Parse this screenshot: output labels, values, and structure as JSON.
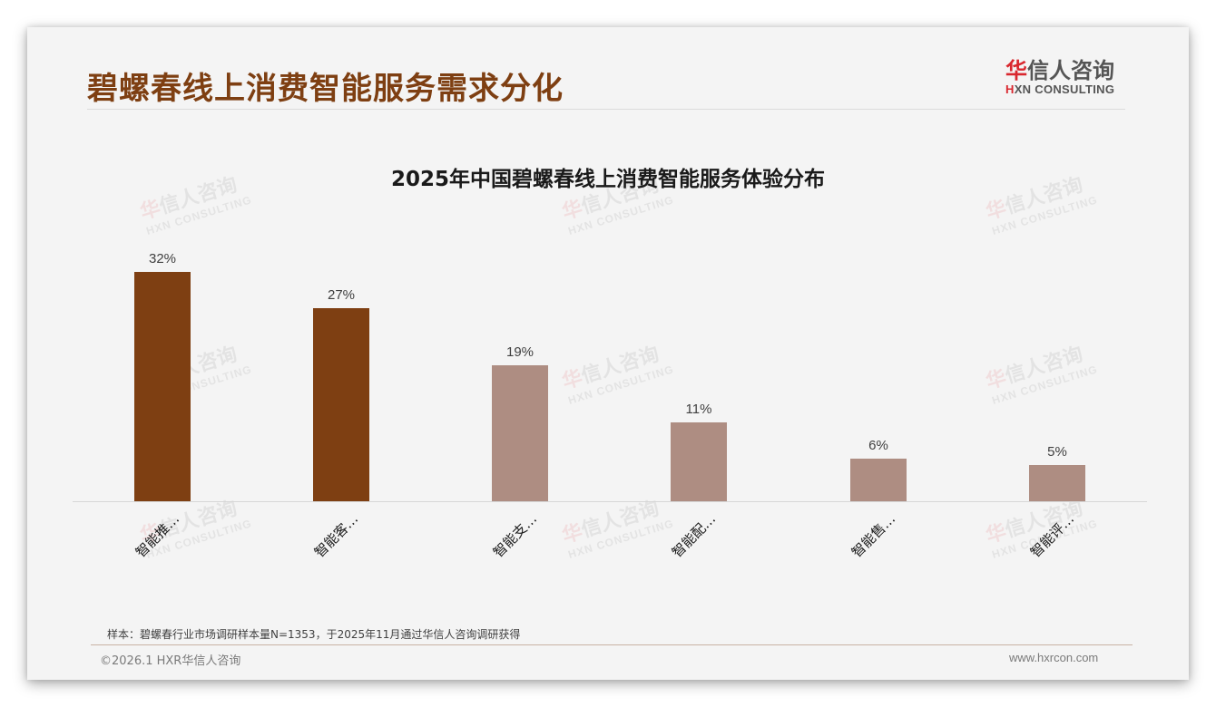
{
  "header": {
    "title": "碧螺春线上消费智能服务需求分化",
    "logo": {
      "cn_first": "华",
      "cn_rest": "信人咨询",
      "en_first": "H",
      "en_rest": "XN CONSULTING"
    }
  },
  "watermark": {
    "cn_first": "华",
    "cn_rest": "信人咨询",
    "en": "HXN CONSULTING"
  },
  "chart_data": {
    "type": "bar",
    "title": "2025年中国碧螺春线上消费智能服务体验分布",
    "categories": [
      "智能推…",
      "智能客…",
      "智能支…",
      "智能配…",
      "智能售…",
      "智能评…"
    ],
    "values": [
      32,
      27,
      19,
      11,
      6,
      5
    ],
    "value_labels": [
      "32%",
      "27%",
      "19%",
      "11%",
      "6%",
      "5%"
    ],
    "unit": "%",
    "xlabel": "",
    "ylabel": "",
    "ylim": [
      0,
      32
    ],
    "grid": false,
    "legend": null,
    "colors": [
      "#7e3f12",
      "#7e3f12",
      "#ae8d82",
      "#ae8d82",
      "#ae8d82",
      "#ae8d82"
    ]
  },
  "footer": {
    "sample_note": "样本：碧螺春行业市场调研样本量N=1353，于2025年11月通过华信人咨询调研获得",
    "copyright": "©2026.1 HXR华信人咨询",
    "website": "www.hxrcon.com"
  }
}
